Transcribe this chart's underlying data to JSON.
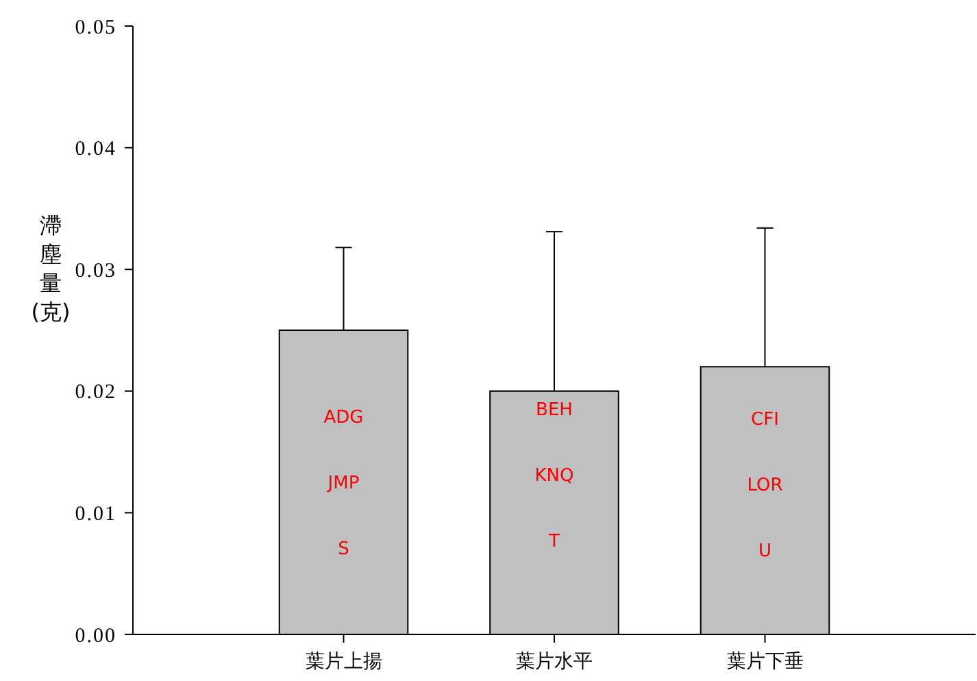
{
  "chart_data": {
    "type": "bar",
    "ylabel": "滯塵量(克)",
    "categories": [
      "葉片上揚",
      "葉片水平",
      "葉片下垂"
    ],
    "values": [
      0.025,
      0.02,
      0.022
    ],
    "color": "#c0c0c0",
    "errors": [
      [
        0.025,
        0.0318
      ],
      [
        0.02,
        0.0331
      ],
      [
        0.022,
        0.0334
      ]
    ],
    "ylim": [
      0,
      0.05
    ],
    "yticks": [
      {
        "value": 0,
        "label": "0.00"
      },
      {
        "value": 0.01,
        "label": "0.01"
      },
      {
        "value": 0.02,
        "label": "0.02"
      },
      {
        "value": 0.03,
        "label": "0.03"
      },
      {
        "value": 0.04,
        "label": "0.04"
      },
      {
        "value": 0.05,
        "label": "0.05"
      }
    ],
    "annotations": [
      "ADG",
      "JMP",
      "S",
      "BEH",
      "KNQ",
      "T",
      "CFI",
      "LOR",
      "U"
    ],
    "grid": false
  }
}
